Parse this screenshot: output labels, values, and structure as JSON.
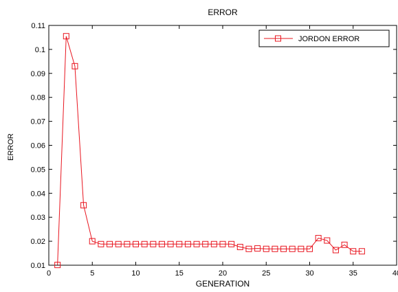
{
  "chart_data": {
    "type": "line",
    "title": "ERROR",
    "xlabel": "GENERATION",
    "ylabel": "ERROR",
    "xlim": [
      0,
      40
    ],
    "ylim": [
      0.01,
      0.11
    ],
    "x_ticks": [
      0,
      5,
      10,
      15,
      20,
      25,
      30,
      35,
      40
    ],
    "y_ticks": [
      0.01,
      0.02,
      0.03,
      0.04,
      0.05,
      0.06,
      0.07,
      0.08,
      0.09,
      0.1,
      0.11
    ],
    "grid": false,
    "legend_position": "top-right",
    "series": [
      {
        "name": "JORDON ERROR",
        "color": "#e8141e",
        "marker": "square",
        "x": [
          1,
          2,
          3,
          4,
          5,
          6,
          7,
          8,
          9,
          10,
          11,
          12,
          13,
          14,
          15,
          16,
          17,
          18,
          19,
          20,
          21,
          22,
          23,
          24,
          25,
          26,
          27,
          28,
          29,
          30,
          31,
          32,
          33,
          34,
          35,
          36
        ],
        "y": [
          0.0101,
          0.1055,
          0.093,
          0.035,
          0.02,
          0.0188,
          0.0188,
          0.0188,
          0.0188,
          0.0188,
          0.0188,
          0.0188,
          0.0188,
          0.0188,
          0.0188,
          0.0188,
          0.0188,
          0.0188,
          0.0188,
          0.0188,
          0.0188,
          0.0176,
          0.0168,
          0.017,
          0.0168,
          0.0168,
          0.0168,
          0.0168,
          0.0168,
          0.0168,
          0.0213,
          0.0203,
          0.0163,
          0.0185,
          0.0158,
          0.0158
        ]
      }
    ]
  }
}
